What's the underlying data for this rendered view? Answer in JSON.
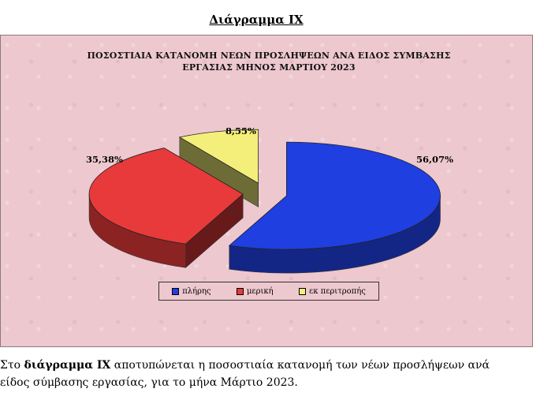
{
  "heading": "Διάγραμμα IX",
  "chart_data": {
    "type": "pie",
    "title_line1": "ΠΟΣΟΣΤΙΑΙΑ ΚΑΤΑΝΟΜΗ ΝΕΩΝ ΠΡΟΣΛΗΨΕΩΝ ΑΝΑ ΕΙΔΟΣ ΣΥΜΒΑΣΗΣ",
    "title_line2": "ΕΡΓΑΣΙΑΣ ΜΗΝΟΣ ΜΑΡΤΙΟΥ 2023",
    "slices": [
      {
        "label": "πλήρης",
        "value": 56.07,
        "display": "56,07%",
        "color": "#1f3fe0"
      },
      {
        "label": "μερική",
        "value": 35.38,
        "display": "35,38%",
        "color": "#e83a3a"
      },
      {
        "label": "εκ περιτροπής",
        "value": 8.55,
        "display": "8,55%",
        "color": "#f3ef7a"
      }
    ],
    "legend_position": "bottom",
    "exploded": true,
    "three_d": true
  },
  "caption": {
    "prefix": "Στο ",
    "bold": "διάγραμμα IX",
    "rest_line1": " αποτυπώνεται η ποσοστιαία κατανομή των νέων προσλήψεων ανά",
    "line2": "είδος σύμβασης εργασίας,  για το μήνα Μάρτιο 2023."
  }
}
